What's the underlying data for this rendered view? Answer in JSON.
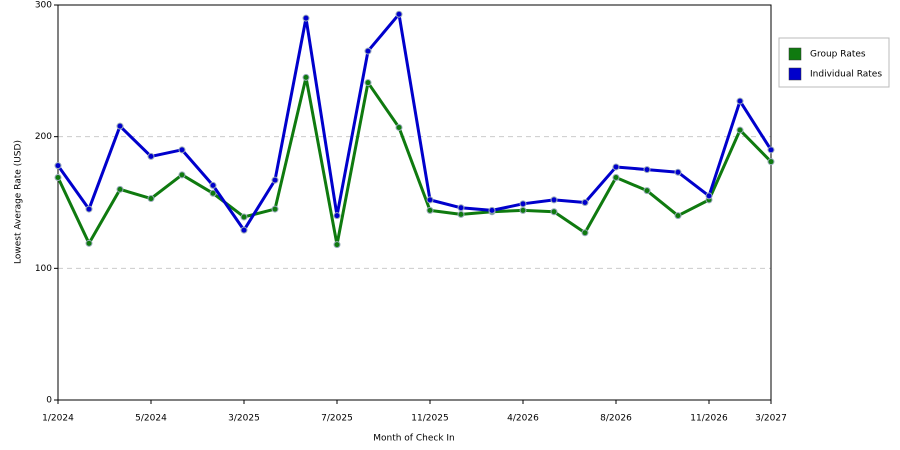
{
  "chart_data": {
    "type": "line",
    "x_label": "Month of Check In",
    "y_label": "Lowest Average Rate (USD)",
    "categories": [
      "1/2024",
      null,
      null,
      "5/2024",
      null,
      null,
      "3/2025",
      null,
      null,
      "7/2025",
      null,
      null,
      "11/2025",
      null,
      null,
      "4/2026",
      null,
      null,
      "8/2026",
      null,
      null,
      "11/2026",
      null,
      "3/2027"
    ],
    "series": [
      {
        "name": "Group Rates",
        "color": "#0f7a0f",
        "values": [
          169,
          119,
          160,
          153,
          171,
          157,
          139,
          145,
          245,
          118,
          241,
          207,
          144,
          141,
          143,
          144,
          143,
          127,
          169,
          159,
          140,
          152,
          205,
          181
        ]
      },
      {
        "name": "Individual Rates",
        "color": "#0000cc",
        "values": [
          178,
          145,
          208,
          185,
          190,
          163,
          129,
          167,
          290,
          140,
          265,
          293,
          152,
          146,
          144,
          149,
          152,
          150,
          177,
          175,
          173,
          155,
          227,
          190
        ]
      }
    ],
    "ylim": [
      0,
      300
    ],
    "yticks": [
      0,
      100,
      200,
      300
    ],
    "grid": true,
    "legend": "right"
  }
}
